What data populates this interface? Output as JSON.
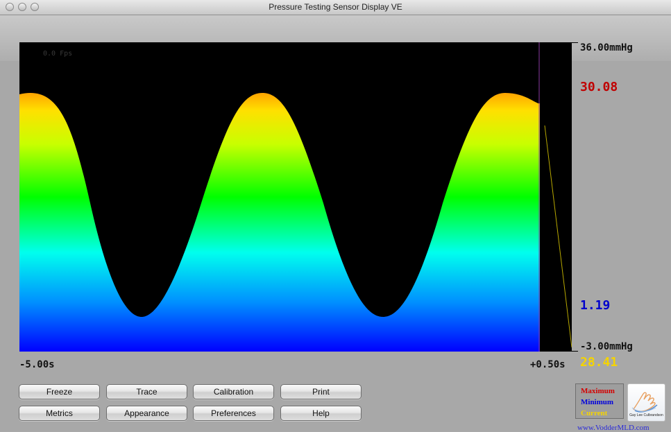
{
  "window": {
    "title": "Pressure Testing Sensor Display VE"
  },
  "plot": {
    "fps": "0.0 Fps",
    "y_max_label": "36.00mmHg",
    "y_min_label": "-3.00mmHg",
    "x_start_label": "-5.00s",
    "x_end_label": "+0.50s"
  },
  "readings": {
    "maximum": "30.08",
    "minimum": "1.19",
    "current": "28.41"
  },
  "colors": {
    "maximum": "#d40000",
    "minimum": "#0000dd",
    "current": "#f5d400"
  },
  "buttons": {
    "freeze": "Freeze",
    "trace": "Trace",
    "calibration": "Calibration",
    "print": "Print",
    "metrics": "Metrics",
    "appearance": "Appearance",
    "preferences": "Preferences",
    "help": "Help"
  },
  "legend": {
    "maximum": "Maximum",
    "minimum": "Minimum",
    "current": "Current"
  },
  "logo": {
    "icon": "hand-icon",
    "name": "Gay Lee Culbrandson"
  },
  "website": "www.VodderMLD.com"
}
